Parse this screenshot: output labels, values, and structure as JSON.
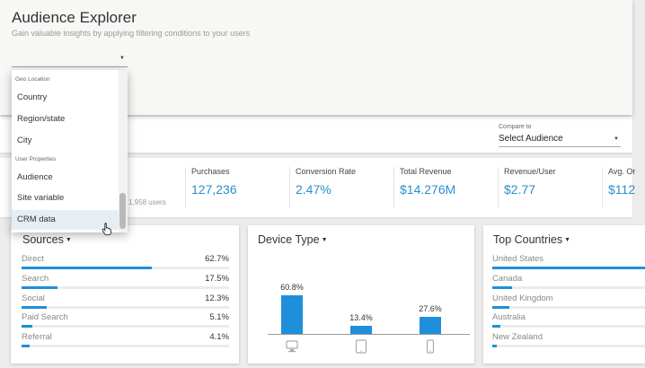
{
  "header": {
    "title": "Audience Explorer",
    "subtitle": "Gain valuable insights by applying filtering conditions to your users"
  },
  "filter_dropdown": {
    "sections": [
      {
        "label": "Geo Location",
        "items": [
          "Country",
          "Region/state",
          "City"
        ]
      },
      {
        "label": "User Properties",
        "items": [
          "Audience",
          "Site variable",
          "CRM data"
        ]
      }
    ],
    "hovered_item": "CRM data"
  },
  "compare": {
    "label": "Compare to",
    "value": "Select Audience"
  },
  "users_text": "1,958 users",
  "metrics": [
    {
      "label": "Purchases",
      "value": "127,236"
    },
    {
      "label": "Conversion Rate",
      "value": "2.47%"
    },
    {
      "label": "Total Revenue",
      "value": "$14.276M"
    },
    {
      "label": "Revenue/User",
      "value": "$2.77"
    },
    {
      "label": "Avg. Or",
      "value": "$112"
    }
  ],
  "sources": {
    "title": "Sources",
    "rows": [
      {
        "label": "Direct",
        "value": "62.7%",
        "pct": 62.7
      },
      {
        "label": "Search",
        "value": "17.5%",
        "pct": 17.5
      },
      {
        "label": "Social",
        "value": "12.3%",
        "pct": 12.3
      },
      {
        "label": "Paid Search",
        "value": "5.1%",
        "pct": 5.1
      },
      {
        "label": "Referral",
        "value": "4.1%",
        "pct": 4.1
      }
    ]
  },
  "device": {
    "title": "Device Type",
    "columns": [
      {
        "icon": "desktop-icon",
        "value": "60.8%",
        "pct": 60.8
      },
      {
        "icon": "tablet-icon",
        "value": "13.4%",
        "pct": 13.4
      },
      {
        "icon": "mobile-icon",
        "value": "27.6%",
        "pct": 27.6
      }
    ]
  },
  "countries": {
    "title": "Top Countries",
    "rows": [
      {
        "label": "United States",
        "pct": 100
      },
      {
        "label": "Canada",
        "pct": 13
      },
      {
        "label": "United Kingdom",
        "pct": 11
      },
      {
        "label": "Australia",
        "pct": 5
      },
      {
        "label": "New Zealand",
        "pct": 3
      }
    ]
  },
  "colors": {
    "accent": "#1f8fdb",
    "value_text": "#2a8fd0"
  }
}
